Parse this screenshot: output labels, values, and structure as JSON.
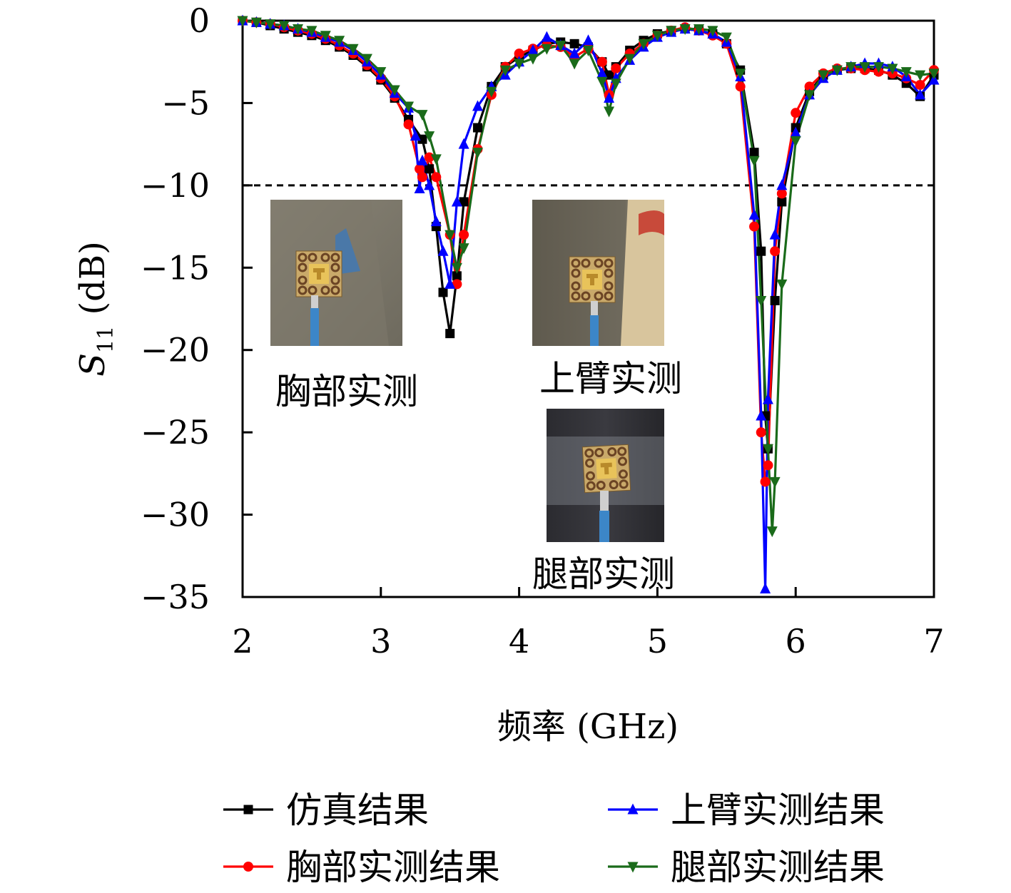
{
  "chart_data": {
    "type": "line",
    "xlabel": "频率 (GHz)",
    "ylabel": "S11 (dB)",
    "xlim": [
      2,
      7
    ],
    "ylim": [
      -35,
      0
    ],
    "xticks": [
      2,
      3,
      4,
      5,
      6,
      7
    ],
    "yticks": [
      0,
      -5,
      -10,
      -15,
      -20,
      -25,
      -30,
      -35
    ],
    "grid": false,
    "legend_position": "bottom",
    "reference_line": {
      "y": -10,
      "style": "dashed"
    },
    "series": [
      {
        "name": "仿真结果",
        "color": "#000000",
        "marker": "square",
        "x": [
          2.0,
          2.1,
          2.2,
          2.3,
          2.4,
          2.5,
          2.6,
          2.7,
          2.8,
          2.9,
          3.0,
          3.1,
          3.2,
          3.3,
          3.35,
          3.4,
          3.45,
          3.5,
          3.55,
          3.6,
          3.7,
          3.8,
          3.9,
          4.0,
          4.1,
          4.2,
          4.3,
          4.4,
          4.5,
          4.6,
          4.65,
          4.7,
          4.8,
          4.9,
          5.0,
          5.1,
          5.2,
          5.3,
          5.4,
          5.5,
          5.6,
          5.7,
          5.75,
          5.78,
          5.8,
          5.85,
          5.9,
          6.0,
          6.1,
          6.2,
          6.3,
          6.4,
          6.5,
          6.6,
          6.7,
          6.8,
          6.9,
          7.0
        ],
        "y": [
          0,
          -0.1,
          -0.3,
          -0.5,
          -0.7,
          -0.9,
          -1.2,
          -1.6,
          -2.1,
          -2.8,
          -3.6,
          -4.7,
          -6.0,
          -7.2,
          -9.0,
          -12.5,
          -16.5,
          -19.0,
          -15.5,
          -11.0,
          -6.5,
          -4.0,
          -2.8,
          -2.2,
          -1.8,
          -1.4,
          -1.3,
          -1.4,
          -1.6,
          -2.5,
          -3.3,
          -2.8,
          -1.8,
          -1.2,
          -0.8,
          -0.6,
          -0.5,
          -0.6,
          -0.8,
          -1.4,
          -3.0,
          -8.0,
          -14.0,
          -24.0,
          -26.0,
          -17.0,
          -11.0,
          -6.5,
          -4.3,
          -3.3,
          -3.0,
          -2.9,
          -2.9,
          -3.0,
          -3.3,
          -3.8,
          -4.6,
          -3.3
        ]
      },
      {
        "name": "胸部实测结果",
        "color": "#ff0000",
        "marker": "circle",
        "x": [
          2.0,
          2.1,
          2.2,
          2.3,
          2.4,
          2.5,
          2.6,
          2.7,
          2.8,
          2.9,
          3.0,
          3.1,
          3.2,
          3.28,
          3.3,
          3.35,
          3.4,
          3.5,
          3.55,
          3.6,
          3.7,
          3.8,
          3.9,
          4.0,
          4.1,
          4.2,
          4.3,
          4.4,
          4.5,
          4.6,
          4.65,
          4.7,
          4.8,
          4.9,
          5.0,
          5.1,
          5.2,
          5.3,
          5.4,
          5.5,
          5.6,
          5.7,
          5.75,
          5.78,
          5.8,
          5.85,
          5.9,
          6.0,
          6.1,
          6.2,
          6.3,
          6.4,
          6.5,
          6.6,
          6.7,
          6.8,
          6.9,
          7.0
        ],
        "y": [
          0,
          -0.1,
          -0.2,
          -0.4,
          -0.6,
          -0.8,
          -1.1,
          -1.5,
          -2.0,
          -2.7,
          -3.5,
          -4.6,
          -6.3,
          -9.0,
          -9.5,
          -8.3,
          -9.5,
          -13.0,
          -16.0,
          -13.0,
          -7.8,
          -4.5,
          -2.8,
          -2.0,
          -1.7,
          -1.5,
          -1.6,
          -2.2,
          -1.7,
          -2.5,
          -4.5,
          -2.9,
          -2.0,
          -1.4,
          -0.9,
          -0.6,
          -0.4,
          -0.6,
          -0.9,
          -1.4,
          -4.0,
          -12.5,
          -25.0,
          -28.0,
          -27.0,
          -14.0,
          -10.5,
          -5.6,
          -4.0,
          -3.2,
          -2.9,
          -2.9,
          -3.0,
          -3.1,
          -3.2,
          -3.5,
          -3.9,
          -3.0
        ]
      },
      {
        "name": "上臂实测结果",
        "color": "#0000ff",
        "marker": "triangle-up",
        "x": [
          2.0,
          2.1,
          2.2,
          2.3,
          2.4,
          2.5,
          2.6,
          2.7,
          2.8,
          2.9,
          3.0,
          3.1,
          3.2,
          3.25,
          3.28,
          3.3,
          3.35,
          3.4,
          3.45,
          3.5,
          3.55,
          3.6,
          3.7,
          3.8,
          3.9,
          4.0,
          4.1,
          4.2,
          4.3,
          4.4,
          4.5,
          4.6,
          4.65,
          4.7,
          4.8,
          4.9,
          5.0,
          5.1,
          5.2,
          5.3,
          5.4,
          5.5,
          5.6,
          5.7,
          5.75,
          5.78,
          5.8,
          5.85,
          5.9,
          6.0,
          6.1,
          6.2,
          6.3,
          6.4,
          6.5,
          6.6,
          6.7,
          6.8,
          6.9,
          7.0
        ],
        "y": [
          0,
          -0.1,
          -0.2,
          -0.3,
          -0.5,
          -0.7,
          -1.0,
          -1.3,
          -1.8,
          -2.5,
          -3.3,
          -4.4,
          -5.3,
          -7.0,
          -10.2,
          -8.5,
          -10.0,
          -12.2,
          -14.0,
          -16.0,
          -11.0,
          -7.5,
          -5.2,
          -4.0,
          -3.3,
          -2.5,
          -1.8,
          -1.0,
          -1.5,
          -2.0,
          -1.2,
          -3.2,
          -4.7,
          -3.5,
          -2.4,
          -1.6,
          -1.0,
          -0.7,
          -0.5,
          -0.6,
          -0.8,
          -1.3,
          -3.4,
          -11.8,
          -24.0,
          -34.5,
          -23.0,
          -13.0,
          -10.0,
          -6.8,
          -4.5,
          -3.5,
          -3.0,
          -2.8,
          -2.6,
          -2.6,
          -2.8,
          -3.4,
          -4.5,
          -3.6
        ]
      },
      {
        "name": "腿部实测结果",
        "color": "#1a6b1a",
        "marker": "triangle-down",
        "x": [
          2.0,
          2.1,
          2.2,
          2.3,
          2.4,
          2.5,
          2.6,
          2.7,
          2.8,
          2.9,
          3.0,
          3.1,
          3.2,
          3.3,
          3.35,
          3.4,
          3.5,
          3.55,
          3.6,
          3.7,
          3.8,
          3.9,
          4.0,
          4.1,
          4.2,
          4.3,
          4.4,
          4.5,
          4.6,
          4.65,
          4.7,
          4.8,
          4.9,
          5.0,
          5.1,
          5.2,
          5.3,
          5.4,
          5.5,
          5.6,
          5.7,
          5.75,
          5.8,
          5.83,
          5.85,
          5.9,
          6.0,
          6.1,
          6.2,
          6.3,
          6.4,
          6.5,
          6.6,
          6.7,
          6.8,
          6.9,
          7.0
        ],
        "y": [
          0,
          -0.1,
          -0.2,
          -0.3,
          -0.5,
          -0.6,
          -0.9,
          -1.2,
          -1.7,
          -2.3,
          -3.1,
          -4.2,
          -5.2,
          -5.7,
          -7.0,
          -8.4,
          -13.0,
          -15.0,
          -13.8,
          -8.0,
          -4.3,
          -3.0,
          -2.6,
          -2.3,
          -1.7,
          -1.5,
          -2.6,
          -1.8,
          -3.7,
          -5.5,
          -3.8,
          -2.3,
          -1.4,
          -0.9,
          -0.6,
          -0.5,
          -0.5,
          -0.6,
          -1.0,
          -3.2,
          -8.5,
          -17.0,
          -26.0,
          -31.0,
          -28.0,
          -16.0,
          -7.3,
          -4.5,
          -3.3,
          -3.0,
          -2.8,
          -2.8,
          -2.8,
          -2.9,
          -3.1,
          -3.3,
          -3.2
        ]
      }
    ],
    "insets": [
      {
        "caption": "胸部实测"
      },
      {
        "caption": "上臂实测"
      },
      {
        "caption": "腿部实测"
      }
    ]
  }
}
